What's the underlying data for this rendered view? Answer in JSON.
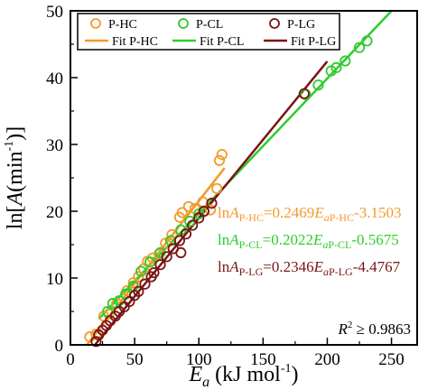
{
  "chart_data": {
    "type": "scatter",
    "xlabel_main": "E",
    "xlabel_sub": "a",
    "xlabel_rest": " (kJ mol",
    "xlabel_sup": "-1",
    "xlabel_close": ")",
    "ylabel_pre": "ln[",
    "ylabel_italic": "A",
    "ylabel_mid": "(min",
    "ylabel_sup": "-1",
    "ylabel_close": ")]",
    "xlim": [
      0,
      270
    ],
    "ylim": [
      0,
      50
    ],
    "xticks": [
      0,
      50,
      100,
      150,
      200,
      250
    ],
    "yticks": [
      0,
      10,
      20,
      30,
      40,
      50
    ],
    "legend_position": "top",
    "series": [
      {
        "name": "P-HC",
        "fit_name": "Fit P-HC",
        "color": "#f39a2b",
        "slope": 0.2469,
        "intercept": -3.1503,
        "fit_x": [
          12,
          120
        ],
        "points": [
          [
            15,
            1.2
          ],
          [
            20,
            1.6
          ],
          [
            26,
            4.3
          ],
          [
            30,
            4.6
          ],
          [
            36,
            6.2
          ],
          [
            44,
            8.1
          ],
          [
            49,
            9.3
          ],
          [
            53,
            10.2
          ],
          [
            57,
            11.4
          ],
          [
            60,
            12.5
          ],
          [
            64,
            13.0
          ],
          [
            69,
            13.6
          ],
          [
            74,
            15.2
          ],
          [
            79,
            16.5
          ],
          [
            85,
            19.1
          ],
          [
            87,
            19.8
          ],
          [
            92,
            20.7
          ],
          [
            97,
            20.4
          ],
          [
            103,
            21.4
          ],
          [
            109,
            20.2
          ],
          [
            114,
            23.4
          ],
          [
            116,
            27.6
          ],
          [
            118,
            28.5
          ]
        ]
      },
      {
        "name": "P-CL",
        "fit_name": "Fit P-CL",
        "color": "#2ecc2e",
        "slope": 0.2022,
        "intercept": -0.5675,
        "fit_x": [
          22,
          262
        ],
        "points": [
          [
            29,
            5.0
          ],
          [
            33,
            6.2
          ],
          [
            38,
            6.6
          ],
          [
            43,
            7.6
          ],
          [
            49,
            8.8
          ],
          [
            55,
            11.0
          ],
          [
            62,
            12.4
          ],
          [
            70,
            13.8
          ],
          [
            78,
            15.6
          ],
          [
            86,
            17.2
          ],
          [
            93,
            18.5
          ],
          [
            100,
            19.6
          ],
          [
            183,
            37.5
          ],
          [
            193,
            38.9
          ],
          [
            203,
            41.0
          ],
          [
            207,
            41.5
          ],
          [
            214,
            42.5
          ],
          [
            225,
            44.5
          ],
          [
            231,
            45.5
          ]
        ]
      },
      {
        "name": "P-LG",
        "fit_name": "Fit P-LG",
        "color": "#7a1414",
        "slope": 0.2346,
        "intercept": -4.4767,
        "fit_x": [
          18,
          200
        ],
        "points": [
          [
            20,
            0.5
          ],
          [
            22,
            1.5
          ],
          [
            25,
            2.2
          ],
          [
            28,
            2.9
          ],
          [
            31,
            3.6
          ],
          [
            35,
            4.3
          ],
          [
            38,
            5.0
          ],
          [
            42,
            5.7
          ],
          [
            46,
            6.5
          ],
          [
            50,
            7.4
          ],
          [
            53,
            8.0
          ],
          [
            58,
            9.1
          ],
          [
            63,
            10.2
          ],
          [
            65,
            10.8
          ],
          [
            70,
            12.0
          ],
          [
            75,
            13.2
          ],
          [
            80,
            14.4
          ],
          [
            85,
            15.6
          ],
          [
            90,
            16.6
          ],
          [
            95,
            17.9
          ],
          [
            100,
            19.0
          ],
          [
            104,
            20.0
          ],
          [
            110,
            21.2
          ],
          [
            86,
            13.8
          ],
          [
            182,
            37.6
          ]
        ]
      }
    ],
    "equations": [
      {
        "ln": "ln",
        "A": "A",
        "sub": "P-HC",
        "eq": "=0.2469",
        "E": "E",
        "asub": "a",
        "sub2": "P-HC",
        "tail": "-3.1503",
        "color": "#f39a2b"
      },
      {
        "ln": "ln",
        "A": "A",
        "sub": "P-CL",
        "eq": "=0.2022",
        "E": "E",
        "asub": "a",
        "sub2": "P-CL",
        "tail": "-0.5675",
        "color": "#2ecc2e"
      },
      {
        "ln": "ln",
        "A": "A",
        "sub": "P-LG",
        "eq": "=0.2346",
        "E": "E",
        "asub": "a",
        "sub2": "P-LG",
        "tail": "-4.4767",
        "color": "#7a1414"
      }
    ],
    "r2": {
      "R": "R",
      "sup": "2",
      "rest": " ≥ 0.9863"
    }
  }
}
